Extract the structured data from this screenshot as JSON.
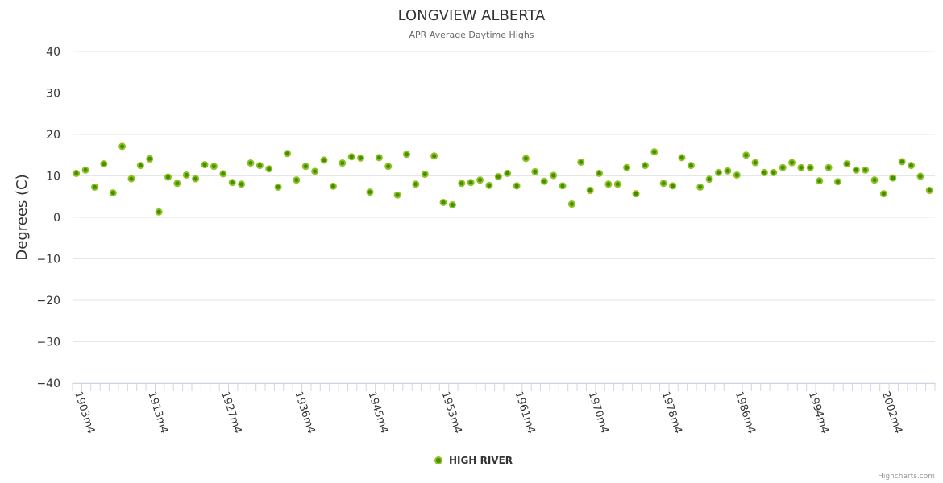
{
  "chart_data": {
    "type": "scatter",
    "title": "LONGVIEW ALBERTA",
    "subtitle": "APR Average Daytime Highs",
    "xlabel": "",
    "ylabel": "Degrees (C)",
    "ylim": [
      -40,
      40
    ],
    "yticks": [
      40,
      30,
      20,
      10,
      0,
      -10,
      -20,
      -30,
      -40
    ],
    "grid": true,
    "legend_position": "bottom-center",
    "x_tick_labels": [
      {
        "index": 0,
        "label": "1903m4"
      },
      {
        "index": 8,
        "label": "1913m4"
      },
      {
        "index": 16,
        "label": "1927m4"
      },
      {
        "index": 24,
        "label": "1936m4"
      },
      {
        "index": 32,
        "label": "1945m4"
      },
      {
        "index": 40,
        "label": "1953m4"
      },
      {
        "index": 48,
        "label": "1961m4"
      },
      {
        "index": 56,
        "label": "1970m4"
      },
      {
        "index": 64,
        "label": "1978m4"
      },
      {
        "index": 72,
        "label": "1986m4"
      },
      {
        "index": 80,
        "label": "1994m4"
      },
      {
        "index": 88,
        "label": "2002m4"
      }
    ],
    "series": [
      {
        "name": "HIGH RIVER",
        "color": "#3f8f00",
        "border_color": "#90c020",
        "values": [
          10.6,
          11.4,
          7.3,
          12.9,
          5.9,
          17.1,
          9.3,
          12.5,
          14.1,
          1.3,
          9.7,
          8.2,
          10.2,
          9.3,
          12.7,
          12.3,
          10.5,
          8.4,
          8.0,
          13.1,
          12.5,
          11.7,
          7.3,
          15.4,
          9.0,
          12.3,
          11.1,
          13.8,
          7.5,
          13.1,
          14.6,
          14.3,
          6.1,
          14.4,
          12.3,
          5.4,
          15.2,
          8.0,
          10.4,
          14.8,
          3.6,
          3.0,
          8.2,
          8.4,
          9.0,
          7.7,
          9.8,
          10.6,
          7.6,
          14.2,
          11.0,
          8.7,
          10.1,
          7.6,
          3.2,
          13.3,
          6.5,
          10.6,
          8.0,
          8.0,
          12.0,
          5.7,
          12.5,
          15.8,
          8.2,
          7.6,
          14.4,
          12.5,
          7.3,
          9.2,
          10.8,
          11.2,
          10.2,
          15.0,
          13.2,
          10.8,
          10.8,
          12.0,
          13.2,
          12.0,
          12.0,
          8.8,
          12.0,
          8.6,
          12.9,
          11.4,
          11.4,
          9.0,
          5.7,
          9.5,
          13.4,
          12.5,
          9.9,
          6.5
        ]
      }
    ],
    "credits": "Highcharts.com"
  }
}
